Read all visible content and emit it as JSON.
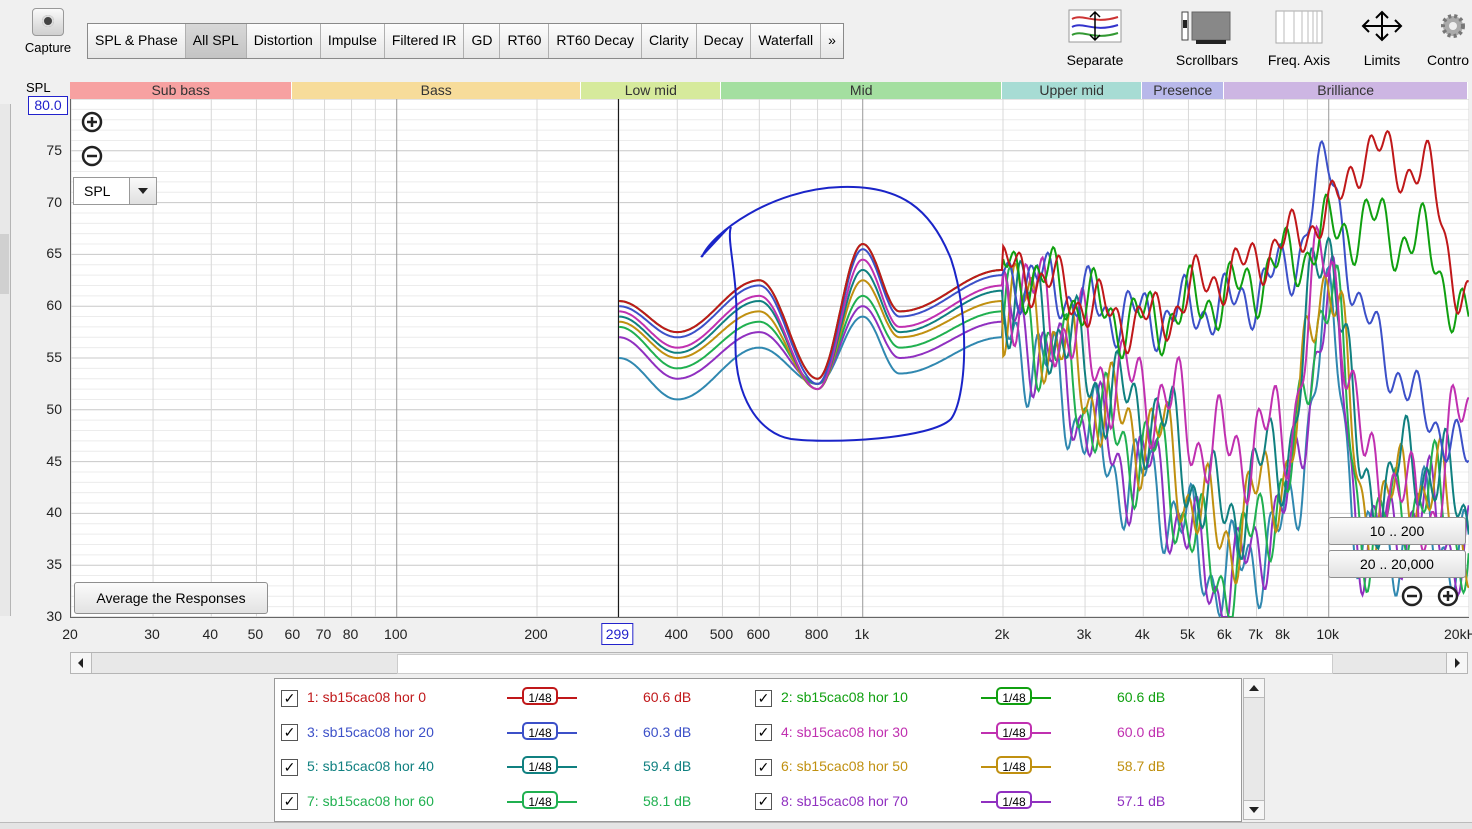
{
  "toolbar": {
    "capture_label": "Capture",
    "tabs": [
      "SPL & Phase",
      "All SPL",
      "Distortion",
      "Impulse",
      "Filtered IR",
      "GD",
      "RT60",
      "RT60 Decay",
      "Clarity",
      "Decay",
      "Waterfall",
      "»"
    ],
    "active_tab": "All SPL",
    "tools": [
      "Separate",
      "Scrollbars",
      "Freq. Axis",
      "Limits",
      "Contro"
    ]
  },
  "bands": [
    {
      "label": "Sub bass",
      "color": "#f7a1a1"
    },
    {
      "label": "Bass",
      "color": "#f7dc9a"
    },
    {
      "label": "Low mid",
      "color": "#d6ea9c"
    },
    {
      "label": "Mid",
      "color": "#a4dfa0"
    },
    {
      "label": "Upper mid",
      "color": "#a7dcd4"
    },
    {
      "label": "Presence",
      "color": "#b8b8ea"
    },
    {
      "label": "Brilliance",
      "color": "#cdb6e3"
    }
  ],
  "plot": {
    "y_unit": "SPL",
    "y_top_value": "80.0",
    "y_ticks": [
      "75",
      "70",
      "65",
      "60",
      "55",
      "50",
      "45",
      "40",
      "35",
      "30"
    ],
    "x_ticks": [
      "20",
      "30",
      "40",
      "50",
      "60",
      "70",
      "80",
      "100",
      "200",
      "400",
      "500",
      "600",
      "800",
      "1k",
      "2k",
      "3k",
      "4k",
      "5k",
      "6k",
      "7k",
      "8k",
      "10k",
      "20kHz"
    ],
    "cursor_value": "299",
    "selector_value": "SPL",
    "average_button": "Average the Responses",
    "range_buttons": [
      "10 .. 200",
      "20 .. 20,000"
    ]
  },
  "chart_data": {
    "type": "line",
    "xlabel": "",
    "ylabel": "SPL",
    "xscale": "log",
    "xlim": [
      20,
      20000
    ],
    "ylim": [
      30,
      80
    ],
    "series": [
      {
        "name": "1: sb15cac08 hor 0",
        "color": "#c0181a",
        "offset": 0.0,
        "hf": "hi",
        "x": [
          300,
          400,
          600,
          800,
          1000,
          1200,
          2000,
          4000,
          6000,
          8000,
          10000,
          12000,
          16000,
          20000
        ],
        "y": [
          60.5,
          57.5,
          62.5,
          53,
          66,
          59.5,
          63.5,
          58.5,
          63,
          66,
          69,
          75,
          73,
          60
        ]
      },
      {
        "name": "2: sb15cac08 hor 10",
        "color": "#10a010",
        "offset": 0.0,
        "hf": "mid",
        "x": [
          300,
          400,
          600,
          800,
          1000,
          1200,
          2000,
          4000,
          6000,
          8000,
          10000,
          12000,
          16000,
          20000
        ],
        "y": [
          60.5,
          57.5,
          62.5,
          53,
          66,
          59.5,
          63.5,
          58.5,
          61,
          64,
          67,
          68,
          66,
          58
        ]
      },
      {
        "name": "3: sb15cac08 hor 20",
        "color": "#3c50c8",
        "offset": 0.8,
        "hf": "lo",
        "x": [
          300,
          400,
          600,
          800,
          1000,
          1200,
          2000,
          4000,
          6000,
          8000,
          10000,
          12000,
          16000,
          20000
        ],
        "y": [
          60,
          57,
          62,
          52.5,
          65.5,
          59,
          63,
          59,
          60,
          63,
          73,
          58,
          50,
          45
        ]
      },
      {
        "name": "4: sb15cac08 hor 30",
        "color": "#c030b0",
        "offset": 1.7,
        "hf": "drop",
        "x": [
          300,
          400,
          600,
          800,
          1000,
          1200,
          2000,
          4000,
          6000,
          8000,
          10000,
          12000,
          16000,
          20000
        ],
        "y": [
          59.5,
          56,
          61,
          52,
          64.5,
          58,
          62,
          52,
          46,
          48,
          65,
          45,
          40,
          50
        ]
      },
      {
        "name": "5: sb15cac08 hor 40",
        "color": "#108080",
        "offset": 2.4,
        "hf": "drop",
        "x": [
          300,
          400,
          600,
          800,
          1000,
          1200,
          2000,
          4000,
          6000,
          8000,
          10000,
          12000,
          16000,
          20000
        ],
        "y": [
          59,
          55.5,
          60.5,
          52,
          63.5,
          57.5,
          61.5,
          50,
          40,
          46,
          67,
          42,
          45,
          40
        ]
      },
      {
        "name": "6: sb15cac08 hor 50",
        "color": "#c09010",
        "offset": 3.3,
        "hf": "drop",
        "x": [
          300,
          400,
          600,
          800,
          1000,
          1200,
          2000,
          4000,
          6000,
          8000,
          10000,
          12000,
          16000,
          20000
        ],
        "y": [
          58.5,
          55,
          59.5,
          52,
          62.5,
          57,
          60.5,
          48,
          38,
          44,
          64,
          40,
          43,
          38
        ]
      },
      {
        "name": "7: sb15cac08 hor 60",
        "color": "#20b050",
        "offset": 4.2,
        "hf": "drop",
        "x": [
          300,
          400,
          600,
          800,
          1000,
          1200,
          2000,
          4000,
          6000,
          8000,
          10000,
          12000,
          16000,
          20000
        ],
        "y": [
          58,
          54,
          58.5,
          52.5,
          61,
          56,
          59.5,
          46,
          34,
          42,
          62,
          38,
          42,
          37
        ]
      },
      {
        "name": "8: sb15cac08 hor 70",
        "color": "#9030c0",
        "offset": 5.0,
        "hf": "drop",
        "x": [
          300,
          400,
          600,
          800,
          1000,
          1200,
          2000,
          4000,
          6000,
          8000,
          10000,
          12000,
          16000,
          20000
        ],
        "y": [
          57,
          53,
          57.5,
          52.5,
          60,
          55,
          58.5,
          44,
          33,
          40,
          60,
          37,
          40,
          36
        ]
      },
      {
        "name": "",
        "color": "#3088b0",
        "offset": 6.2,
        "hf": "drop",
        "x": [
          300,
          400,
          600,
          800,
          1000,
          1200,
          2000,
          4000,
          6000,
          8000,
          10000,
          12000,
          16000,
          20000
        ],
        "y": [
          55,
          51,
          56,
          52.5,
          59,
          53.5,
          57,
          43,
          34,
          38,
          58,
          36,
          39,
          35
        ]
      }
    ]
  },
  "legend": [
    {
      "label": "1: sb15cac08 hor 0",
      "value": "60.6 dB",
      "color": "#c0181a",
      "smoothing": "1/48"
    },
    {
      "label": "2: sb15cac08 hor 10",
      "value": "60.6 dB",
      "color": "#10a010",
      "smoothing": "1/48"
    },
    {
      "label": "3: sb15cac08 hor 20",
      "value": "60.3 dB",
      "color": "#3c50c8",
      "smoothing": "1/48"
    },
    {
      "label": "4: sb15cac08 hor 30",
      "value": "60.0 dB",
      "color": "#c030b0",
      "smoothing": "1/48"
    },
    {
      "label": "5: sb15cac08 hor 40",
      "value": "59.4 dB",
      "color": "#108080",
      "smoothing": "1/48"
    },
    {
      "label": "6: sb15cac08 hor 50",
      "value": "58.7 dB",
      "color": "#c09010",
      "smoothing": "1/48"
    },
    {
      "label": "7: sb15cac08 hor 60",
      "value": "58.1 dB",
      "color": "#20b050",
      "smoothing": "1/48"
    },
    {
      "label": "8: sb15cac08 hor 70",
      "value": "57.1 dB",
      "color": "#9030c0",
      "smoothing": "1/48"
    }
  ],
  "annotation_color": "#1a24c8"
}
